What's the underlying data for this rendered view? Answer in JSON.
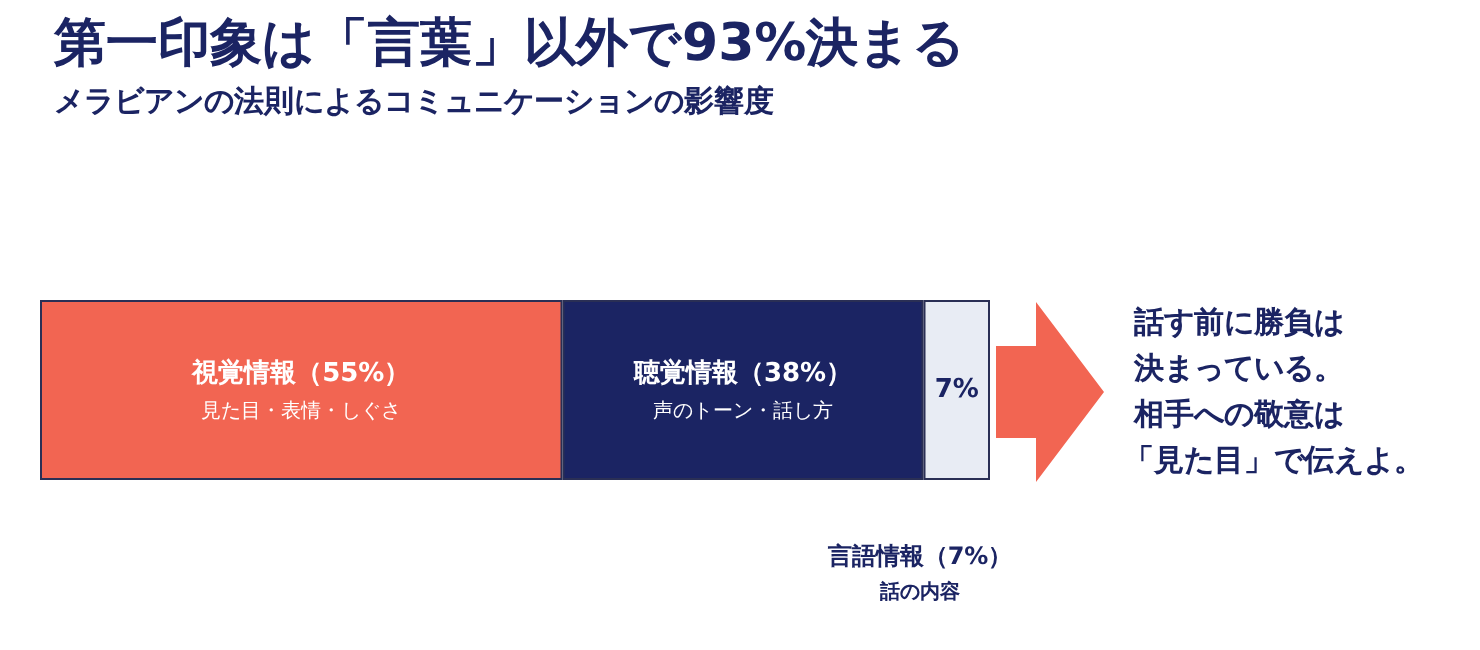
{
  "chart_data": {
    "type": "bar",
    "orientation": "horizontal",
    "stacked": true,
    "title": "第一印象は「言葉」以外で93%決まる",
    "subtitle": "メラビアンの法則によるコミュニケーションの影響度",
    "categories": [
      null
    ],
    "xlim": [
      0,
      100
    ],
    "tick_labels": false,
    "series": [
      {
        "name": "視覚情報（55%）",
        "color": "#f26552",
        "values": [
          55
        ],
        "value_labels": [
          "見た目・表情・しぐさ"
        ]
      },
      {
        "name": "聴覚情報（38%）",
        "color": "#1b2463",
        "values": [
          38
        ],
        "value_labels": [
          "声のトーン・話し方"
        ]
      },
      {
        "color": "#e8ecf4",
        "values": [
          7
        ],
        "value_labels": [
          "7%"
        ]
      }
    ],
    "annotations": [
      "話す前に勝負は",
      "決まっている。",
      "相手への敬意は",
      "「見た目」で伝えよ。",
      "言語情報（7%）",
      "話の内容"
    ]
  }
}
